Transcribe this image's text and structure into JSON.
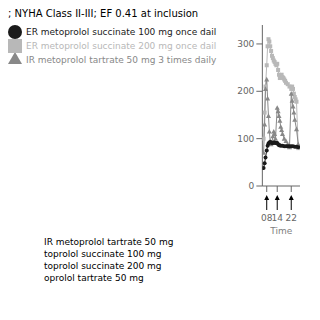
{
  "chart_data": {
    "type": "line",
    "title": "; NYHA Class II-III; EF 0.41 at inclusion",
    "x_label": "Time",
    "xlim": [
      5.5,
      27
    ],
    "xticks": [
      {
        "value": 8,
        "label": "08"
      },
      {
        "value": 14,
        "label": "14"
      },
      {
        "value": 22,
        "label": "22"
      }
    ],
    "ylim": [
      0,
      340
    ],
    "yticks": [
      0,
      100,
      200,
      300
    ],
    "grid": false,
    "legend": "top-left",
    "series": [
      {
        "name": "ER metoprolol succinate 200 mg once dail",
        "color": "#b8b8b8",
        "marker": "square",
        "x": [
          6.2,
          6.8,
          7.3,
          8.0,
          8.5,
          9.0,
          9.5,
          10.0,
          10.5,
          11.0,
          11.5,
          12.0,
          12.5,
          13.0,
          13.5,
          14.0,
          14.5,
          15.0,
          15.5,
          16.0,
          16.5,
          17.0,
          17.5,
          18.0,
          18.5,
          19.0,
          20.0,
          21.0,
          22.0,
          22.5,
          23.0,
          23.5,
          24.0,
          24.5,
          25.0,
          26.0
        ],
        "values": [
          100,
          155,
          210,
          255,
          295,
          310,
          305,
          295,
          285,
          275,
          270,
          265,
          262,
          258,
          255,
          258,
          245,
          235,
          228,
          230,
          235,
          230,
          228,
          225,
          222,
          218,
          215,
          210,
          205,
          210,
          205,
          195,
          188,
          183,
          178,
          80
        ]
      },
      {
        "name": "IR metoprolol tartrate 50 mg 3 times daily",
        "color": "#888888",
        "marker": "triangle",
        "x": [
          6.2,
          6.8,
          7.3,
          8.0,
          8.5,
          9.0,
          9.5,
          10.0,
          10.5,
          11.0,
          11.5,
          12.0,
          12.5,
          13.0,
          14.0,
          14.5,
          15.0,
          15.5,
          16.0,
          16.5,
          17.0,
          18.0,
          19.0,
          20.0,
          21.0,
          22.0,
          22.5,
          23.0,
          23.5,
          24.0,
          25.0,
          26.0
        ],
        "values": [
          70,
          130,
          205,
          225,
          185,
          148,
          115,
          95,
          88,
          92,
          105,
          115,
          110,
          100,
          165,
          158,
          148,
          138,
          125,
          118,
          110,
          100,
          95,
          88,
          82,
          195,
          180,
          168,
          155,
          140,
          120,
          88
        ]
      },
      {
        "name": "ER metoprolol succinate 100 mg once dail",
        "color": "#1a1a1a",
        "marker": "circle",
        "x": [
          6.2,
          6.8,
          7.3,
          8.0,
          8.5,
          9.0,
          9.5,
          10.0,
          10.5,
          11.0,
          11.5,
          12.0,
          12.5,
          13.0,
          13.5,
          14.0,
          14.5,
          15.0,
          15.5,
          16.0,
          17.0,
          18.0,
          19.0,
          20.0,
          21.0,
          22.0,
          23.0,
          24.0,
          25.0,
          26.0
        ],
        "values": [
          38,
          48,
          60,
          75,
          85,
          90,
          92,
          93,
          92,
          91,
          91,
          92,
          92,
          91,
          91,
          91,
          88,
          86,
          86,
          85,
          85,
          84,
          84,
          84,
          84,
          84,
          84,
          83,
          83,
          82
        ]
      }
    ],
    "annotations": [
      "IR metoprolol tartrate 50 mg",
      "toprolol succinate 100 mg",
      "toprolol succinate 200 mg",
      "oprolol tartrate 50 mg"
    ]
  }
}
